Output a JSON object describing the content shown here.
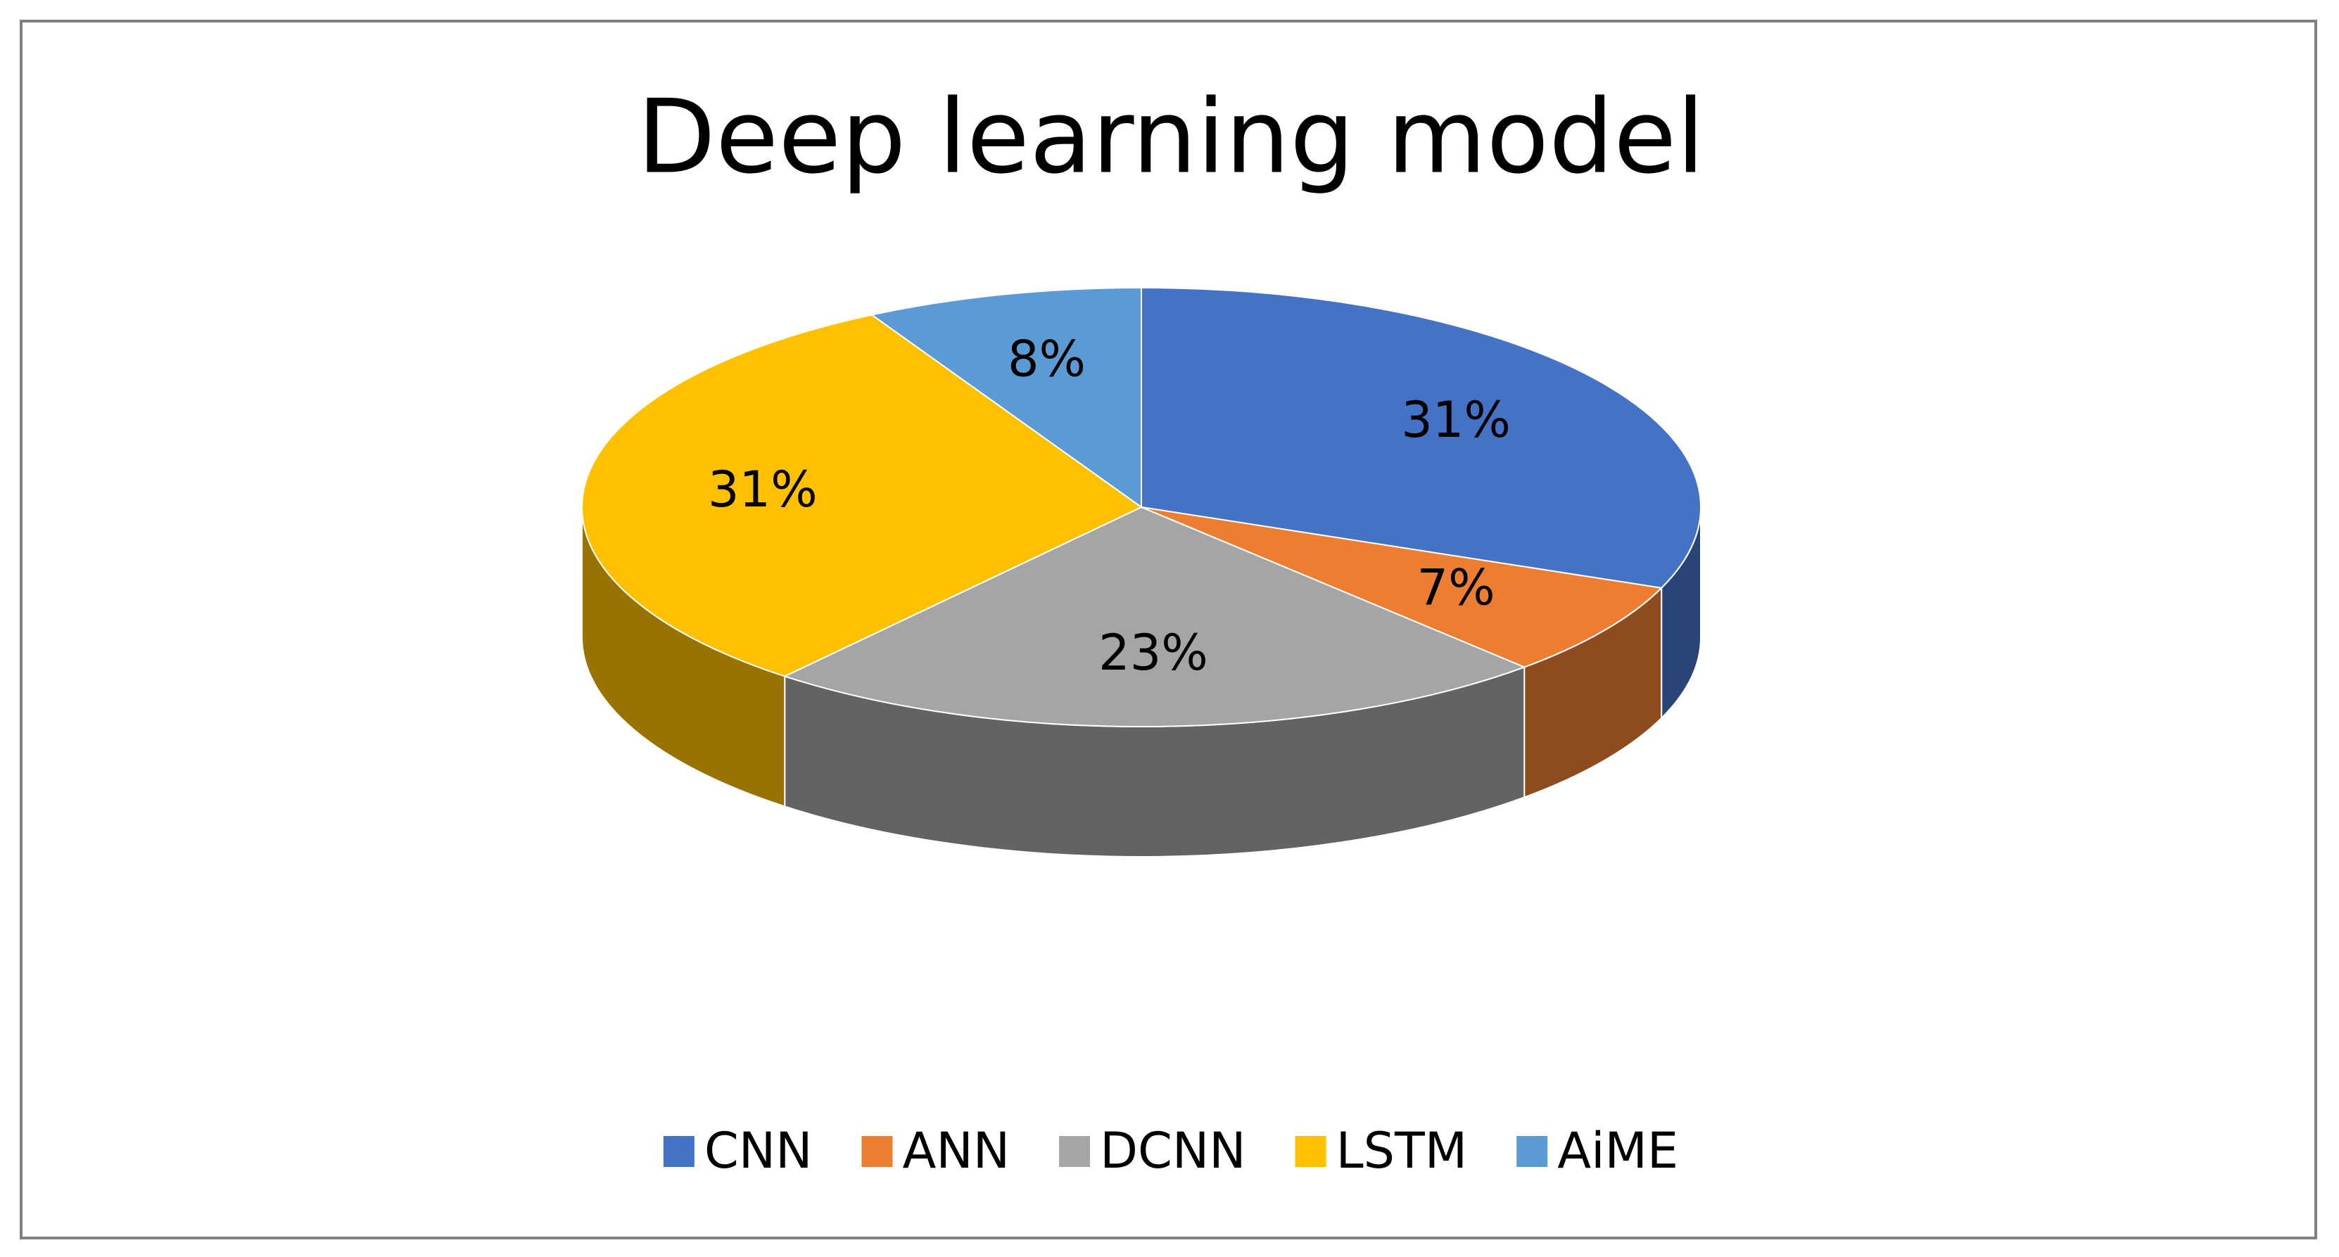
{
  "chart_data": {
    "type": "pie",
    "title": "Deep learning model",
    "categories": [
      "CNN",
      "ANN",
      "DCNN",
      "LSTM",
      "AiME"
    ],
    "values": [
      31,
      7,
      23,
      31,
      8
    ],
    "value_labels": [
      "31%",
      "7%",
      "23%",
      "31%",
      "8%"
    ],
    "colors": [
      "#4472c4",
      "#ed7d31",
      "#a5a5a5",
      "#ffc000",
      "#5b9bd5"
    ],
    "legend": "bottom"
  }
}
